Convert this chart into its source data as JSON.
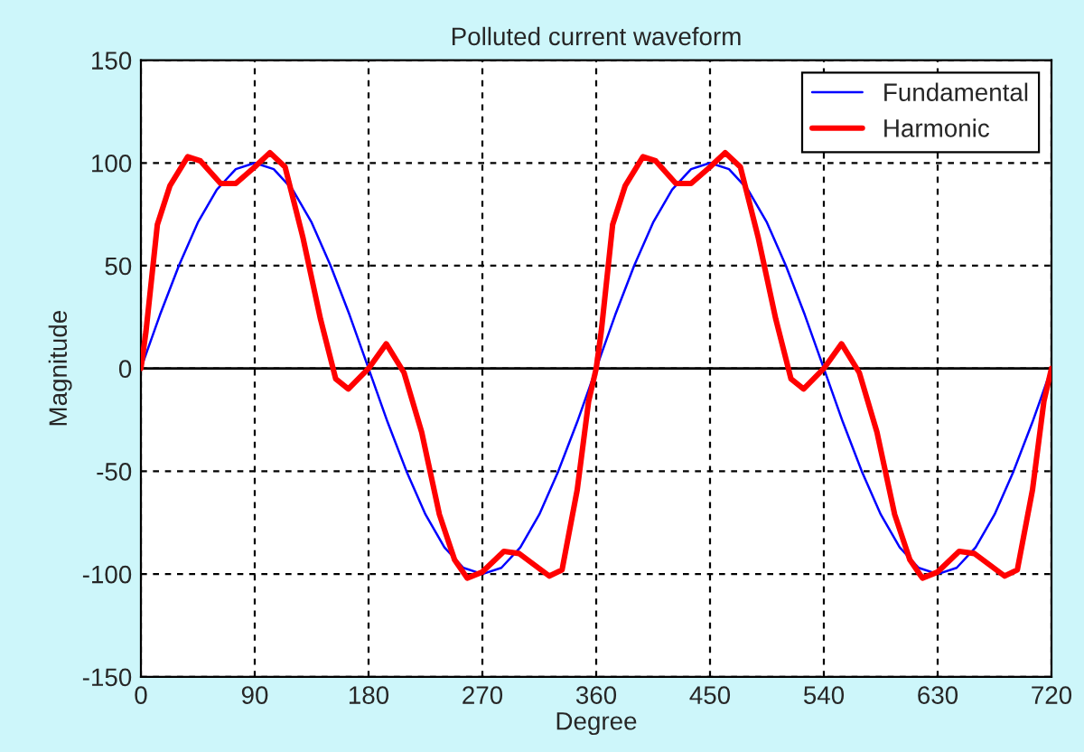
{
  "chart_data": {
    "type": "line",
    "title": "Polluted current waveform",
    "xlabel": "Degree",
    "ylabel": "Magnitude",
    "xlim": [
      0,
      720
    ],
    "ylim": [
      -150,
      150
    ],
    "xticks": [
      0,
      90,
      180,
      270,
      360,
      450,
      540,
      630,
      720
    ],
    "yticks": [
      -150,
      -100,
      -50,
      0,
      50,
      100,
      150
    ],
    "grid": true,
    "legend": "top right",
    "line_style": "solid",
    "marker": "none",
    "ref_lines": [
      {
        "axis": "y",
        "value": 0,
        "color": "#000000",
        "line_style": "solid"
      }
    ],
    "series": [
      {
        "name": "Fundamental",
        "color": "#0000ff",
        "x": [
          0,
          15,
          30,
          45,
          60,
          75,
          90,
          105,
          120,
          135,
          150,
          165,
          180,
          195,
          210,
          225,
          240,
          255,
          270,
          285,
          300,
          315,
          330,
          345,
          360,
          375,
          390,
          405,
          420,
          435,
          450,
          465,
          480,
          495,
          510,
          525,
          540,
          555,
          570,
          585,
          600,
          615,
          630,
          645,
          660,
          675,
          690,
          705,
          720
        ],
        "values": [
          0,
          26,
          50,
          71,
          87,
          97,
          100,
          97,
          87,
          71,
          50,
          26,
          0,
          -26,
          -50,
          -71,
          -87,
          -97,
          -100,
          -97,
          -87,
          -71,
          -50,
          -26,
          0,
          26,
          50,
          71,
          87,
          97,
          100,
          97,
          87,
          71,
          50,
          26,
          0,
          -26,
          -50,
          -71,
          -87,
          -97,
          -100,
          -97,
          -87,
          -71,
          -50,
          -26,
          0
        ]
      },
      {
        "name": "Harmonic",
        "color": "#ff0000",
        "x": [
          0,
          4,
          13,
          23,
          37,
          47,
          63,
          75,
          90,
          102,
          114,
          128,
          142,
          154,
          164,
          180,
          194,
          208,
          222,
          236,
          248,
          258,
          270,
          287,
          299,
          323,
          333,
          345,
          354,
          360,
          364,
          373,
          383,
          397,
          407,
          423,
          435,
          450,
          462,
          474,
          488,
          502,
          514,
          524,
          540,
          554,
          568,
          582,
          596,
          608,
          618,
          630,
          647,
          659,
          683,
          693,
          705,
          714,
          720
        ],
        "values": [
          0,
          18,
          70,
          89,
          103,
          101,
          90,
          90,
          98,
          105,
          98,
          64,
          24,
          -5,
          -10,
          0,
          12,
          -2,
          -31,
          -71,
          -93,
          -102,
          -99,
          -89,
          -90,
          -101,
          -98,
          -59,
          -16,
          0,
          18,
          70,
          89,
          103,
          101,
          90,
          90,
          98,
          105,
          98,
          64,
          24,
          -5,
          -10,
          0,
          12,
          -2,
          -31,
          -71,
          -93,
          -102,
          -99,
          -89,
          -90,
          -101,
          -98,
          -59,
          -16,
          0
        ]
      }
    ]
  }
}
